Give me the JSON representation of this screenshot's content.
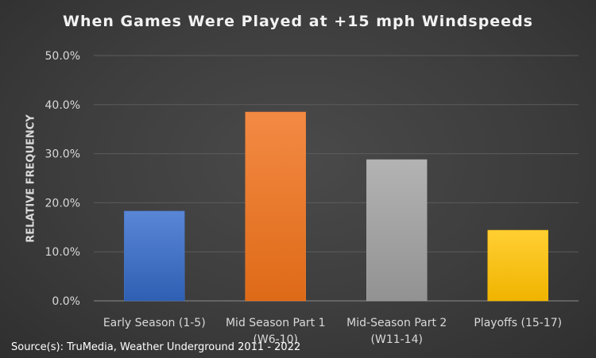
{
  "chart_data": {
    "type": "bar",
    "title": "When Games Were Played at +15 mph Windspeeds",
    "ylabel": "RELATIVE FREQUENCY",
    "xlabel": "",
    "ylim": [
      0,
      50
    ],
    "yticks": [
      "0.0%",
      "10.0%",
      "20.0%",
      "30.0%",
      "40.0%",
      "50.0%"
    ],
    "grid": true,
    "categories": [
      [
        "Early Season (1-5)"
      ],
      [
        "Mid Season Part 1",
        "(W6-10)"
      ],
      [
        "Mid-Season Part 2",
        "(W11-14)"
      ],
      [
        "Playoffs (15-17)"
      ]
    ],
    "values": [
      18.3,
      38.5,
      28.8,
      14.4
    ],
    "colors": [
      "#4472c4",
      "#ed7d31",
      "#a5a5a5",
      "#ffc000"
    ]
  },
  "source": "Source(s): TruMedia, Weather Underground 2011 - 2022"
}
